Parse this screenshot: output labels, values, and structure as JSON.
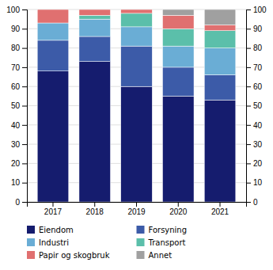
{
  "chart_data": {
    "type": "bar",
    "stacked": true,
    "categories": [
      "2017",
      "2018",
      "2019",
      "2020",
      "2021"
    ],
    "series": [
      {
        "name": "Eiendom",
        "color": "#151c6e",
        "values": [
          68,
          73,
          60,
          55,
          53
        ]
      },
      {
        "name": "Forsyning",
        "color": "#3c5ba8",
        "values": [
          16,
          13,
          21,
          15,
          13
        ]
      },
      {
        "name": "Industri",
        "color": "#6aadd5",
        "values": [
          9,
          9,
          10,
          11,
          14
        ]
      },
      {
        "name": "Transport",
        "color": "#5bbfaa",
        "values": [
          0,
          2,
          7,
          9,
          9
        ]
      },
      {
        "name": "Papir og skogbruk",
        "color": "#e07070",
        "values": [
          7,
          3,
          2,
          7,
          3
        ]
      },
      {
        "name": "Annet",
        "color": "#a0a0a0",
        "values": [
          0,
          0,
          0,
          3,
          8
        ]
      }
    ],
    "ylim": [
      0,
      100
    ],
    "yticks": [
      0,
      10,
      20,
      30,
      40,
      50,
      60,
      70,
      80,
      90,
      100
    ],
    "y2lim": [
      0,
      100
    ],
    "y2ticks": [
      0,
      10,
      20,
      30,
      40,
      50,
      60,
      70,
      80,
      90,
      100
    ],
    "grid": true,
    "legend": "bottom"
  }
}
